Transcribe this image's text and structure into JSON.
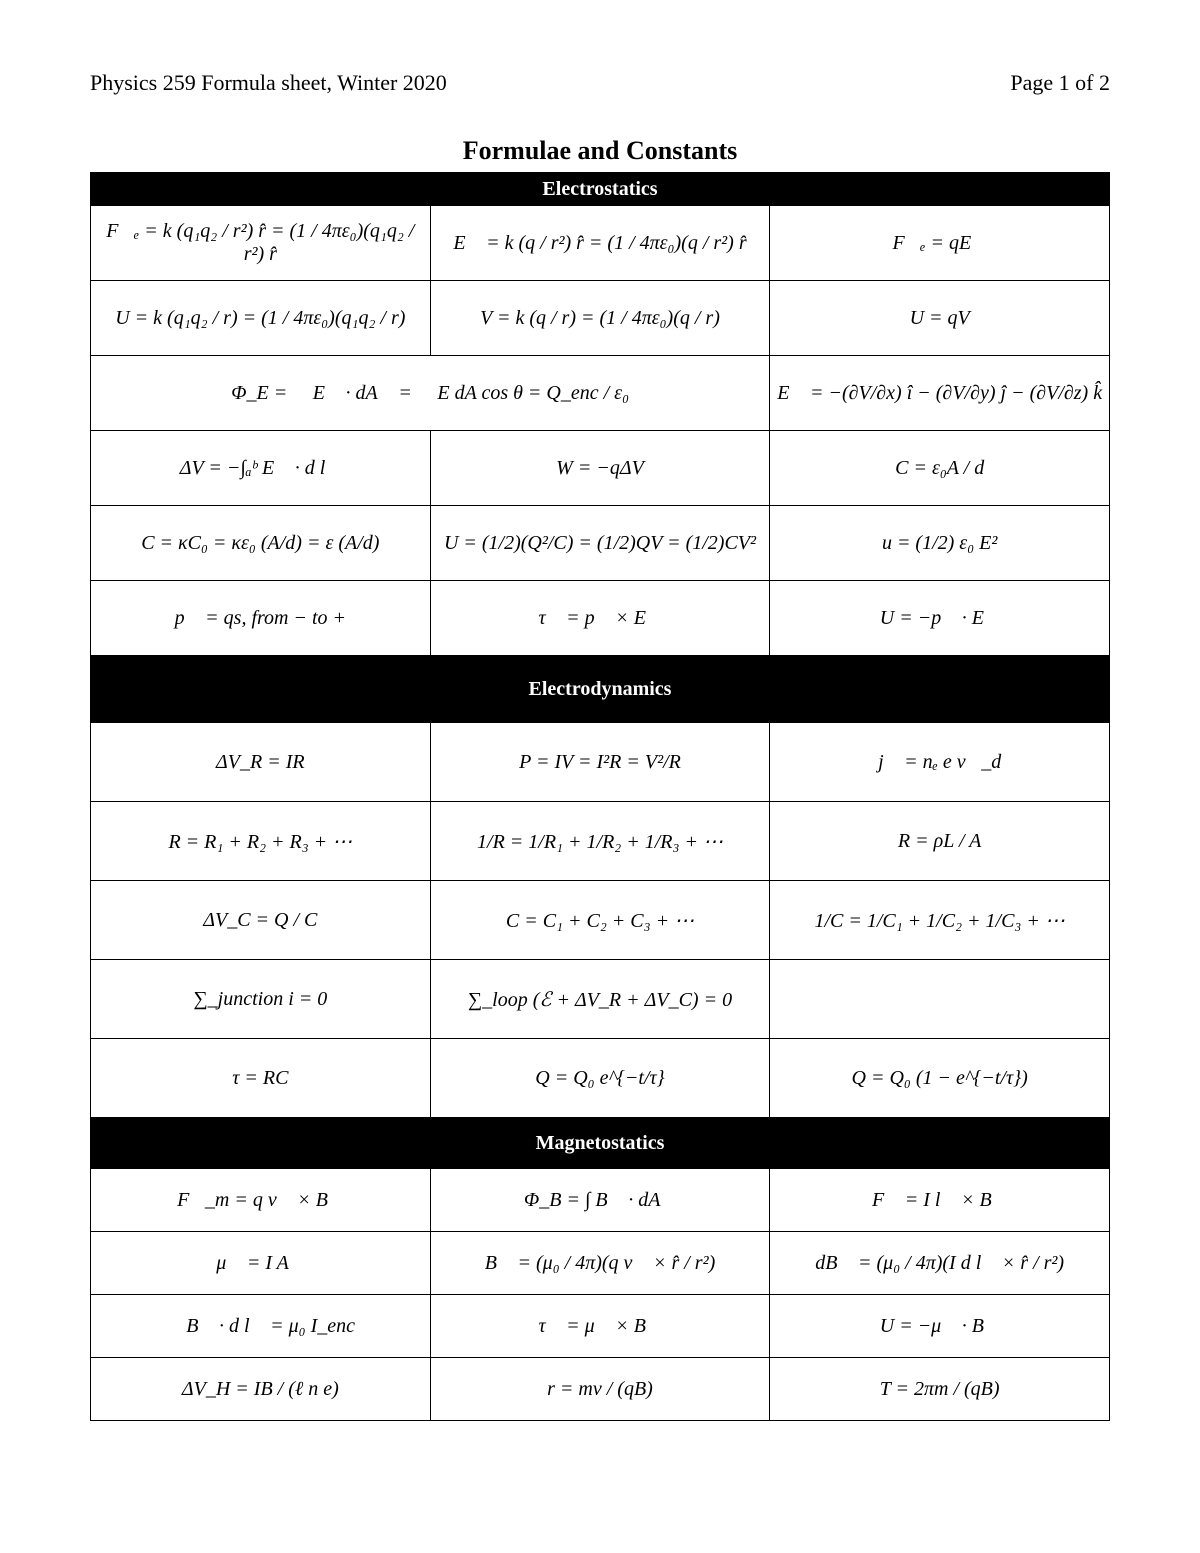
{
  "header": {
    "left": "Physics 259 Formula sheet, Winter 2020",
    "right": "Page 1 of 2"
  },
  "title": "Formulae and Constants",
  "colors": {
    "background": "#ffffff",
    "text": "#000000",
    "section_bg": "#000000",
    "section_text": "#ffffff",
    "border": "#000000"
  },
  "fonts": {
    "family": "Times New Roman, serif",
    "header_size_pt": 17,
    "title_size_pt": 20,
    "cell_size_pt": 15,
    "title_weight": "bold"
  },
  "sections": [
    {
      "name": "Electrostatics",
      "rows": [
        {
          "cols": [
            "F⃗ₑ = k (q₁q₂ / r²) r̂ = (1 / 4πε₀)(q₁q₂ / r²) r̂",
            "E⃗ = k (q / r²) r̂ = (1 / 4πε₀)(q / r²) r̂",
            "F⃗ₑ = qE⃗"
          ]
        },
        {
          "cols": [
            "U = k (q₁q₂ / r) = (1 / 4πε₀)(q₁q₂ / r)",
            "V = k (q / r) = (1 / 4πε₀)(q / r)",
            "U = qV"
          ]
        },
        {
          "span": [
            2,
            1
          ],
          "cols": [
            "Φ_E = ∯ E⃗ · dA⃗ = ∯ E dA cos θ = Q_enc / ε₀",
            "E⃗ = −(∂V/∂x) î − (∂V/∂y) ĵ − (∂V/∂z) k̂"
          ]
        },
        {
          "cols": [
            "ΔV = −∫ₐᵇ E⃗ · d l⃗",
            "W = −qΔV",
            "C = ε₀A / d"
          ]
        },
        {
          "cols": [
            "C = κC₀ = κε₀ (A/d) = ε (A/d)",
            "U = (1/2)(Q²/C) = (1/2)QV = (1/2)CV²",
            "u = (1/2) ε₀ E²"
          ]
        },
        {
          "cols": [
            "p⃗ = qs, from − to +",
            "τ⃗ = p⃗ × E⃗",
            "U = −p⃗ · E⃗"
          ]
        }
      ]
    },
    {
      "name": "Electrodynamics",
      "rows": [
        {
          "cols": [
            "ΔV_R = IR",
            "P = IV = I²R = V²/R",
            "j⃗ = nₑ e v⃗_d"
          ]
        },
        {
          "cols": [
            "R = R₁ + R₂ + R₃ + ⋯",
            "1/R = 1/R₁ + 1/R₂ + 1/R₃ + ⋯",
            "R = ρL / A"
          ]
        },
        {
          "cols": [
            "ΔV_C = Q / C",
            "C = C₁ + C₂ + C₃ + ⋯",
            "1/C = 1/C₁ + 1/C₂ + 1/C₃ + ⋯"
          ]
        },
        {
          "cols": [
            "∑_junction i = 0",
            "∑_loop (ℰ + ΔV_R + ΔV_C) = 0",
            ""
          ]
        },
        {
          "cols": [
            "τ = RC",
            "Q = Q₀ e^{−t/τ}",
            "Q = Q₀ (1 − e^{−t/τ})"
          ]
        }
      ]
    },
    {
      "name": "Magnetostatics",
      "rows": [
        {
          "cols": [
            "F⃗_m = q v⃗ × B⃗",
            "Φ_B = ∫ B⃗ · dA⃗",
            "F⃗ = I l⃗ × B⃗"
          ]
        },
        {
          "cols": [
            "μ⃗ = I A⃗",
            "B⃗ = (μ₀ / 4π)(q v⃗ × r̂ / r²)",
            "dB⃗ = (μ₀ / 4π)(I d l⃗ × r̂ / r²)"
          ]
        },
        {
          "cols": [
            "∮ B⃗ · d l⃗ = μ₀ I_enc",
            "τ⃗ = μ⃗ × B⃗",
            "U = −μ⃗ · B⃗"
          ]
        },
        {
          "cols": [
            "ΔV_H = IB / (ℓ n e)",
            "r = mv / (qB)",
            "T = 2πm / (qB)"
          ]
        }
      ]
    }
  ]
}
